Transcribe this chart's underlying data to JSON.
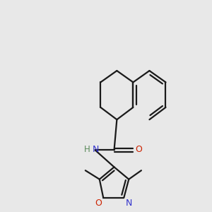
{
  "background_color": "#e8e8e8",
  "bond_color": "#1a1a1a",
  "N_color": "#3333cc",
  "O_color": "#cc2200",
  "H_color": "#5a8a5a",
  "line_width": 1.6,
  "dbo": 0.038,
  "figsize": [
    3.0,
    3.0
  ],
  "dpi": 100,
  "xlim": [
    0.55,
    2.55
  ],
  "ylim": [
    0.15,
    2.65
  ]
}
